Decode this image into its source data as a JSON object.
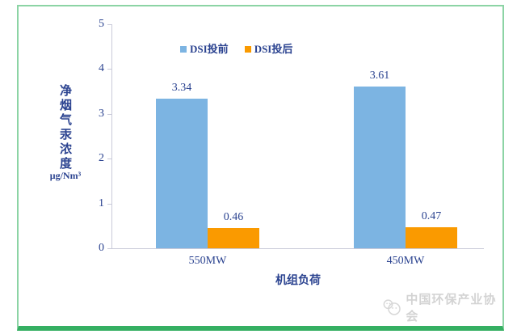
{
  "chart_data": {
    "type": "bar",
    "title": "",
    "categories": [
      "550MW",
      "450MW"
    ],
    "series": [
      {
        "name": "DSI投前",
        "values": [
          3.34,
          3.61
        ],
        "color": "#7CB4E2"
      },
      {
        "name": "DSI投后",
        "values": [
          0.46,
          0.47
        ],
        "color": "#FA9A00"
      }
    ],
    "xlabel": "机组负荷",
    "ylabel": "净烟气汞浓度",
    "ylabel_unit": "μg/Nm³",
    "ylim": [
      0,
      5
    ],
    "yticks": [
      0,
      1,
      2,
      3,
      4,
      5
    ],
    "grid": false,
    "legend_position": "top-center",
    "value_labels": true
  },
  "watermark": {
    "logo": "chat-bubbles-logo",
    "text": "中国环保产业协会"
  },
  "colors": {
    "text": "#2B4390",
    "axis": "#C9CAD9",
    "series1": "#7CB4E2",
    "series2": "#FA9A00",
    "frame_border": "#8CD4A5",
    "frame_bottom_bar": "#35AF62",
    "watermark": "#D3D3D3"
  }
}
